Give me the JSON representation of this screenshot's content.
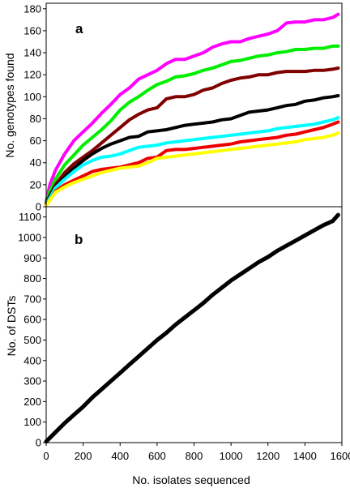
{
  "chart_data": [
    {
      "type": "line",
      "panel_label": "a",
      "ylabel": "No. genotypes found",
      "xlabel": "",
      "xlim": [
        0,
        1600
      ],
      "ylim": [
        0,
        185
      ],
      "yticks": [
        0,
        20,
        40,
        60,
        80,
        100,
        120,
        140,
        160,
        180
      ],
      "grid": false,
      "legend": "none",
      "series": [
        {
          "color": "#ff00ff",
          "x": [
            0,
            20,
            50,
            100,
            150,
            200,
            250,
            300,
            350,
            400,
            450,
            500,
            550,
            600,
            650,
            700,
            750,
            800,
            850,
            900,
            950,
            1000,
            1050,
            1100,
            1150,
            1200,
            1250,
            1300,
            1350,
            1400,
            1450,
            1500,
            1550,
            1580
          ],
          "y": [
            5,
            20,
            33,
            48,
            60,
            68,
            76,
            85,
            93,
            102,
            108,
            116,
            120,
            124,
            130,
            134,
            134,
            137,
            140,
            145,
            148,
            150,
            150,
            153,
            155,
            157,
            160,
            167,
            168,
            168,
            170,
            170,
            172,
            175
          ]
        },
        {
          "color": "#00ee00",
          "x": [
            0,
            20,
            50,
            100,
            150,
            200,
            250,
            300,
            350,
            400,
            450,
            500,
            550,
            600,
            650,
            700,
            750,
            800,
            850,
            900,
            950,
            1000,
            1050,
            1100,
            1150,
            1200,
            1250,
            1300,
            1350,
            1400,
            1450,
            1500,
            1550,
            1580
          ],
          "y": [
            4,
            14,
            25,
            38,
            47,
            56,
            63,
            70,
            78,
            88,
            95,
            100,
            106,
            111,
            114,
            118,
            119,
            121,
            124,
            126,
            129,
            132,
            133,
            135,
            137,
            138,
            140,
            141,
            143,
            143,
            144,
            144,
            146,
            146
          ]
        },
        {
          "color": "#800000",
          "x": [
            0,
            20,
            50,
            100,
            150,
            200,
            250,
            300,
            350,
            400,
            450,
            500,
            550,
            600,
            650,
            700,
            750,
            800,
            850,
            900,
            950,
            1000,
            1050,
            1100,
            1150,
            1200,
            1250,
            1300,
            1350,
            1400,
            1450,
            1500,
            1550,
            1580
          ],
          "y": [
            3,
            10,
            20,
            31,
            39,
            45,
            51,
            58,
            65,
            72,
            79,
            84,
            88,
            90,
            98,
            100,
            100,
            102,
            106,
            108,
            112,
            115,
            117,
            118,
            120,
            120,
            122,
            123,
            123,
            123,
            124,
            124,
            125,
            126
          ]
        },
        {
          "color": "#000000",
          "x": [
            0,
            20,
            50,
            100,
            150,
            200,
            250,
            300,
            350,
            400,
            450,
            500,
            550,
            600,
            650,
            700,
            750,
            800,
            850,
            900,
            950,
            1000,
            1050,
            1100,
            1150,
            1200,
            1250,
            1300,
            1350,
            1400,
            1450,
            1500,
            1550,
            1580
          ],
          "y": [
            2,
            10,
            18,
            27,
            35,
            42,
            48,
            53,
            57,
            60,
            63,
            64,
            68,
            69,
            70,
            72,
            74,
            75,
            76,
            77,
            79,
            80,
            83,
            86,
            87,
            88,
            90,
            92,
            93,
            96,
            97,
            99,
            100,
            101
          ]
        },
        {
          "color": "#00ffff",
          "x": [
            0,
            20,
            50,
            100,
            150,
            200,
            250,
            300,
            350,
            400,
            450,
            500,
            550,
            600,
            650,
            700,
            750,
            800,
            850,
            900,
            950,
            1000,
            1050,
            1100,
            1150,
            1200,
            1250,
            1300,
            1350,
            1400,
            1450,
            1500,
            1550,
            1580
          ],
          "y": [
            2,
            8,
            17,
            25,
            32,
            38,
            42,
            45,
            46,
            48,
            51,
            54,
            55,
            56,
            58,
            59,
            60,
            61,
            62,
            63,
            64,
            65,
            66,
            67,
            68,
            69,
            71,
            72,
            73,
            74,
            75,
            77,
            79,
            81
          ]
        },
        {
          "color": "#ee0000",
          "x": [
            0,
            20,
            50,
            100,
            150,
            200,
            250,
            300,
            350,
            400,
            450,
            500,
            550,
            600,
            650,
            700,
            750,
            800,
            850,
            900,
            950,
            1000,
            1050,
            1100,
            1150,
            1200,
            1250,
            1300,
            1350,
            1400,
            1450,
            1500,
            1550,
            1580
          ],
          "y": [
            2,
            6,
            14,
            20,
            24,
            28,
            32,
            34,
            35,
            36,
            38,
            40,
            44,
            45,
            51,
            52,
            52,
            53,
            54,
            55,
            56,
            57,
            59,
            60,
            61,
            62,
            63,
            65,
            66,
            68,
            70,
            72,
            75,
            77
          ]
        },
        {
          "color": "#ffff00",
          "x": [
            0,
            20,
            50,
            100,
            150,
            200,
            250,
            300,
            350,
            400,
            450,
            500,
            550,
            600,
            650,
            700,
            750,
            800,
            850,
            900,
            950,
            1000,
            1050,
            1100,
            1150,
            1200,
            1250,
            1300,
            1350,
            1400,
            1450,
            1500,
            1550,
            1580
          ],
          "y": [
            1,
            6,
            13,
            18,
            22,
            25,
            28,
            31,
            33,
            35,
            36,
            37,
            40,
            44,
            45,
            46,
            47,
            48,
            49,
            50,
            51,
            52,
            53,
            54,
            55,
            56,
            57,
            58,
            59,
            61,
            62,
            63,
            65,
            67
          ]
        }
      ]
    },
    {
      "type": "line",
      "panel_label": "b",
      "ylabel": "No. of DSTs",
      "xlabel": "No. isolates sequenced",
      "xlim": [
        0,
        1600
      ],
      "ylim": [
        0,
        1150
      ],
      "xticks": [
        0,
        200,
        400,
        600,
        800,
        1000,
        1200,
        1400,
        1600
      ],
      "yticks": [
        0,
        100,
        200,
        300,
        400,
        500,
        600,
        700,
        800,
        900,
        1000,
        1100
      ],
      "grid": false,
      "legend": "none",
      "series": [
        {
          "color": "#000000",
          "x": [
            0,
            50,
            100,
            150,
            200,
            250,
            300,
            350,
            400,
            450,
            500,
            550,
            600,
            650,
            700,
            750,
            800,
            850,
            900,
            950,
            1000,
            1050,
            1100,
            1150,
            1200,
            1250,
            1300,
            1350,
            1400,
            1450,
            1500,
            1550,
            1580
          ],
          "y": [
            5,
            50,
            95,
            135,
            175,
            220,
            260,
            300,
            340,
            380,
            420,
            460,
            500,
            535,
            575,
            610,
            645,
            680,
            720,
            755,
            790,
            820,
            850,
            880,
            905,
            935,
            960,
            985,
            1010,
            1035,
            1060,
            1080,
            1110
          ]
        }
      ]
    }
  ]
}
